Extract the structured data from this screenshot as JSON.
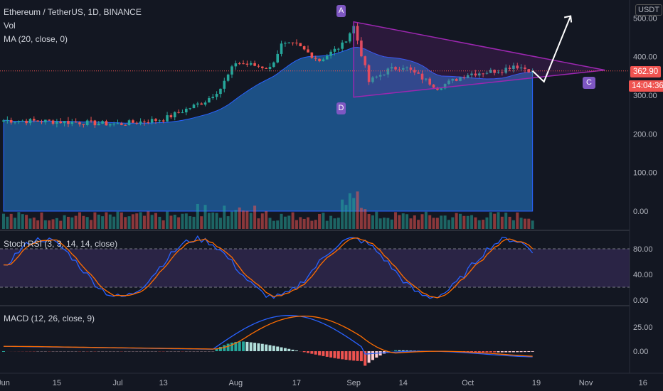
{
  "header": {
    "title": "Ethereum / TetherUS, 1D, BINANCE",
    "vol": "Vol",
    "ma": "MA (20, close, 0)",
    "stoch": "Stoch RSI (3, 3, 14, 14, close)",
    "macd": "MACD (12, 26, close, 9)"
  },
  "price_axis": {
    "unit": "USDT",
    "ticks": [
      "500.00",
      "400.00",
      "300.00",
      "200.00",
      "100.00",
      "0.00"
    ],
    "last_price": "362.90",
    "countdown": "14:04:36"
  },
  "stoch_axis": {
    "ticks": [
      "80.00",
      "40.00",
      "0.00"
    ]
  },
  "macd_axis": {
    "ticks": [
      "25.00",
      "0.00"
    ]
  },
  "time_axis": {
    "ticks": [
      "Jun",
      "15",
      "Jul",
      "13",
      "Aug",
      "17",
      "Sep",
      "14",
      "Oct",
      "19",
      "Nov",
      "16"
    ]
  },
  "annotations": {
    "A": "A",
    "C": "C",
    "D": "D"
  },
  "colors": {
    "up": "#26a69a",
    "down": "#ef5350",
    "pattern": "#9c27b0",
    "ma_fill": "#1e5a96",
    "stoch_k": "#2962ff",
    "stoch_d": "#ff6d00",
    "macd": "#2962ff",
    "signal": "#ff6d00"
  },
  "chart_data": {
    "type": "candlestick",
    "symbol": "ETH/USDT",
    "interval": "1D",
    "price_range": [
      0,
      520
    ],
    "dates_range": [
      "2020-06-01",
      "2020-11-20"
    ],
    "anchors": [
      {
        "date": "2020-06-01",
        "close": 235
      },
      {
        "date": "2020-06-15",
        "close": 232
      },
      {
        "date": "2020-07-01",
        "close": 225
      },
      {
        "date": "2020-07-13",
        "close": 238
      },
      {
        "date": "2020-07-24",
        "close": 285
      },
      {
        "date": "2020-07-28",
        "close": 318
      },
      {
        "date": "2020-08-01",
        "close": 385
      },
      {
        "date": "2020-08-10",
        "close": 370
      },
      {
        "date": "2020-08-13",
        "close": 430
      },
      {
        "date": "2020-08-17",
        "close": 430
      },
      {
        "date": "2020-08-23",
        "close": 390
      },
      {
        "date": "2020-08-29",
        "close": 430
      },
      {
        "date": "2020-09-01",
        "close": 478
      },
      {
        "date": "2020-09-05",
        "close": 335
      },
      {
        "date": "2020-09-10",
        "close": 365
      },
      {
        "date": "2020-09-14",
        "close": 375
      },
      {
        "date": "2020-09-23",
        "close": 320
      },
      {
        "date": "2020-10-01",
        "close": 355
      },
      {
        "date": "2020-10-10",
        "close": 365
      },
      {
        "date": "2020-10-13",
        "close": 378
      },
      {
        "date": "2020-10-18",
        "close": 362.9
      }
    ],
    "pattern_lines": {
      "upper": [
        [
          "2020-09-01",
          490
        ],
        [
          "2020-11-06",
          365
        ]
      ],
      "lower": [
        [
          "2020-09-01",
          295
        ],
        [
          "2020-11-06",
          365
        ]
      ],
      "projection": [
        [
          "2020-10-18",
          362.9
        ],
        [
          "2020-10-21",
          335
        ],
        [
          "2020-10-28",
          505
        ]
      ]
    },
    "stoch_rsi": {
      "levels": [
        80,
        20
      ],
      "range": [
        0,
        100
      ]
    },
    "macd": {
      "range": [
        -10,
        40
      ]
    }
  }
}
